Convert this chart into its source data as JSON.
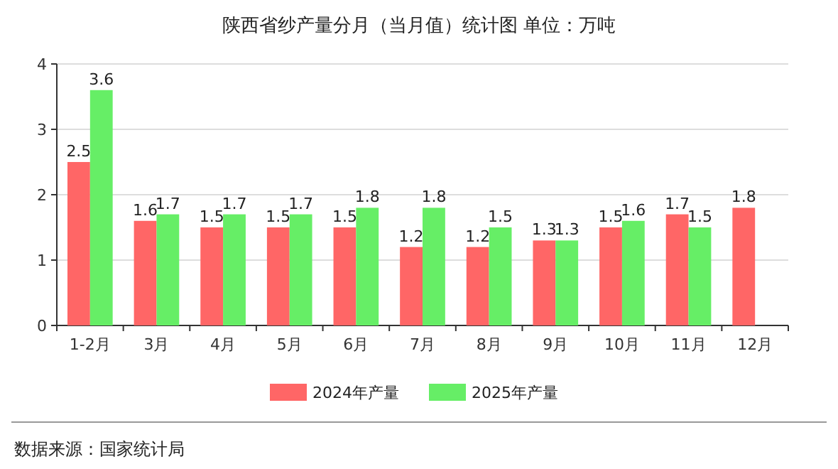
{
  "chart_data": {
    "type": "bar",
    "title": "陕西省纱产量分月（当月值）统计图 单位：万吨",
    "categories": [
      "1-2月",
      "3月",
      "4月",
      "5月",
      "6月",
      "7月",
      "8月",
      "9月",
      "10月",
      "11月",
      "12月"
    ],
    "series": [
      {
        "name": "2024年产量",
        "color": "#ff6666",
        "values": [
          2.5,
          1.6,
          1.5,
          1.5,
          1.5,
          1.2,
          1.2,
          1.3,
          1.5,
          1.7,
          1.8
        ]
      },
      {
        "name": "2025年产量",
        "color": "#66ee66",
        "values": [
          3.6,
          1.7,
          1.7,
          1.7,
          1.8,
          1.8,
          1.5,
          1.3,
          1.6,
          1.5,
          null
        ]
      }
    ],
    "ylim": [
      0,
      4
    ],
    "yticks": [
      0,
      1,
      2,
      3,
      4
    ],
    "grid": "y",
    "legend": "bottom",
    "data_labels": true,
    "annotations": [
      "数据来源：国家统计局"
    ]
  }
}
